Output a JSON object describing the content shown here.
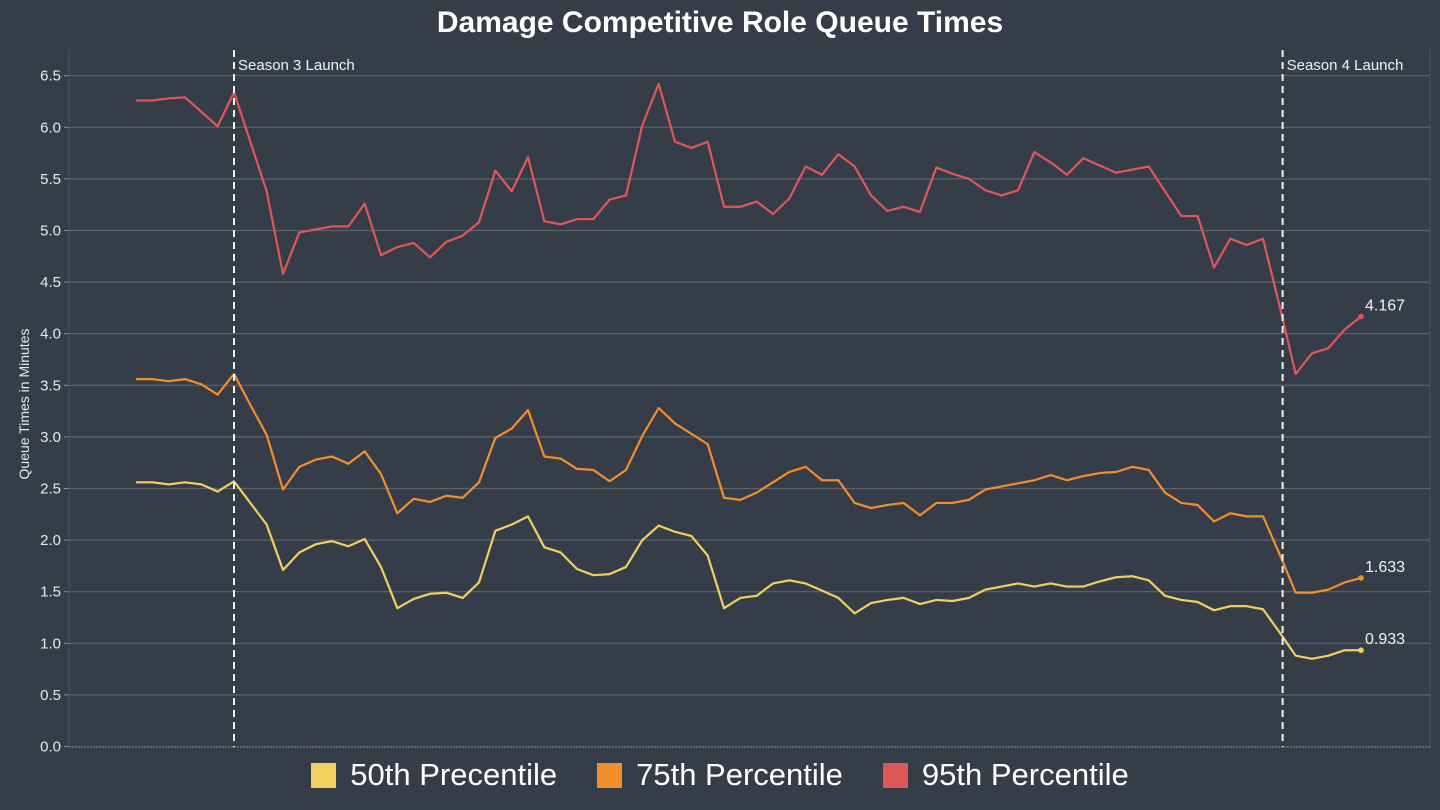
{
  "chart_data": {
    "type": "line",
    "title": "Damage Competitive Role Queue Times",
    "xlabel": "",
    "ylabel": "Queue Times in Minutes",
    "ylim": [
      0,
      6.5
    ],
    "yticks": [
      "0.0",
      "0.5",
      "1.0",
      "1.5",
      "2.0",
      "2.5",
      "3.0",
      "3.5",
      "4.0",
      "4.5",
      "5.0",
      "5.5",
      "6.0",
      "6.5"
    ],
    "grid": true,
    "legend_position": "bottom",
    "x": [
      0,
      1,
      2,
      3,
      4,
      5,
      6,
      7,
      8,
      9,
      10,
      11,
      12,
      13,
      14,
      15,
      16,
      17,
      18,
      19,
      20,
      21,
      22,
      23,
      24,
      25,
      26,
      27,
      28,
      29,
      30,
      31,
      32,
      33,
      34,
      35,
      36,
      37,
      38,
      39,
      40,
      41,
      42,
      43,
      44,
      45,
      46,
      47,
      48,
      49,
      50,
      51,
      52,
      53,
      54,
      55,
      56,
      57,
      58,
      59,
      60,
      61,
      62,
      63,
      64,
      65,
      66,
      67,
      68,
      69,
      70,
      71,
      72,
      73,
      74,
      75
    ],
    "annotations": [
      {
        "label": "Season 3 Launch",
        "x": 6
      },
      {
        "label": "Season 4 Launch",
        "x": 70.2
      }
    ],
    "series": [
      {
        "name": "50th Precentile",
        "color": "#f2cf5f",
        "end_label": "0.933",
        "values": [
          2.56,
          2.56,
          2.54,
          2.56,
          2.54,
          2.47,
          2.57,
          2.36,
          2.15,
          1.71,
          1.88,
          1.96,
          1.99,
          1.94,
          2.01,
          1.74,
          1.34,
          1.43,
          1.48,
          1.49,
          1.44,
          1.59,
          2.09,
          2.15,
          2.23,
          1.93,
          1.88,
          1.72,
          1.66,
          1.67,
          1.74,
          2.0,
          2.14,
          2.08,
          2.04,
          1.85,
          1.34,
          1.44,
          1.46,
          1.58,
          1.61,
          1.58,
          1.51,
          1.44,
          1.29,
          1.39,
          1.42,
          1.44,
          1.38,
          1.42,
          1.41,
          1.44,
          1.52,
          1.55,
          1.58,
          1.55,
          1.58,
          1.55,
          1.55,
          1.6,
          1.64,
          1.65,
          1.61,
          1.46,
          1.42,
          1.4,
          1.32,
          1.36,
          1.36,
          1.33,
          1.11,
          0.88,
          0.85,
          0.88,
          0.933,
          0.933
        ]
      },
      {
        "name": "75th Percentile",
        "color": "#f28e2b",
        "end_label": "1.633",
        "values": [
          3.56,
          3.56,
          3.54,
          3.56,
          3.51,
          3.41,
          3.61,
          3.31,
          3.02,
          2.49,
          2.71,
          2.78,
          2.81,
          2.74,
          2.86,
          2.64,
          2.26,
          2.4,
          2.37,
          2.43,
          2.41,
          2.56,
          2.99,
          3.08,
          3.26,
          2.81,
          2.79,
          2.69,
          2.68,
          2.57,
          2.68,
          3.01,
          3.28,
          3.13,
          3.03,
          2.93,
          2.41,
          2.39,
          2.46,
          2.56,
          2.66,
          2.71,
          2.58,
          2.58,
          2.36,
          2.31,
          2.34,
          2.36,
          2.24,
          2.36,
          2.36,
          2.39,
          2.49,
          2.52,
          2.55,
          2.58,
          2.63,
          2.58,
          2.62,
          2.65,
          2.66,
          2.71,
          2.68,
          2.46,
          2.36,
          2.34,
          2.18,
          2.26,
          2.23,
          2.23,
          1.87,
          1.49,
          1.49,
          1.52,
          1.59,
          1.633
        ]
      },
      {
        "name": "95th Percentile",
        "color": "#e15759",
        "end_label": "4.167",
        "values": [
          6.26,
          6.26,
          6.28,
          6.29,
          6.15,
          6.01,
          6.34,
          5.86,
          5.38,
          4.58,
          4.98,
          5.01,
          5.04,
          5.04,
          5.26,
          4.76,
          4.84,
          4.88,
          4.74,
          4.89,
          4.95,
          5.08,
          5.58,
          5.38,
          5.71,
          5.09,
          5.06,
          5.11,
          5.11,
          5.3,
          5.34,
          6.02,
          6.42,
          5.86,
          5.8,
          5.86,
          5.23,
          5.23,
          5.28,
          5.16,
          5.31,
          5.62,
          5.54,
          5.74,
          5.62,
          5.34,
          5.19,
          5.23,
          5.18,
          5.61,
          5.55,
          5.5,
          5.39,
          5.34,
          5.39,
          5.76,
          5.66,
          5.54,
          5.7,
          5.63,
          5.56,
          5.59,
          5.62,
          5.38,
          5.14,
          5.14,
          4.64,
          4.92,
          4.86,
          4.92,
          4.28,
          3.61,
          3.81,
          3.86,
          4.04,
          4.167
        ]
      }
    ]
  }
}
